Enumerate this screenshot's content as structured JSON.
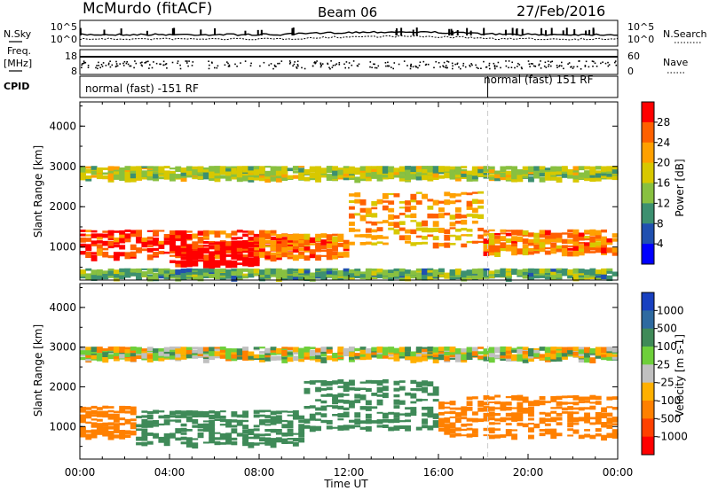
{
  "header": {
    "station": "McMurdo (fitACF)",
    "beam": "Beam 06",
    "date": "27/Feb/2016"
  },
  "noise_panel": {
    "left_label": "N.Sky",
    "right_label": "N.Search",
    "left_ticks": [
      "10^5",
      "10^0"
    ],
    "right_ticks": [
      "10^5",
      "10^0"
    ]
  },
  "freq_panel": {
    "left_label_1": "Freq.",
    "left_label_2": "[MHz]",
    "right_label": "Nave",
    "left_ticks": [
      "18",
      "8"
    ],
    "right_ticks": [
      "60",
      "0"
    ]
  },
  "cpid": {
    "label": "CPID",
    "segments": [
      {
        "text": "normal (fast) -151 RF",
        "start_hour": 0
      },
      {
        "text": "normal (fast) 151 RF",
        "start_hour": 18.2
      }
    ]
  },
  "power_colorbar": {
    "label": "Power [dB]",
    "ticks": [
      "28",
      "24",
      "20",
      "16",
      "12",
      "8",
      "4"
    ],
    "colors": [
      "#ff0000",
      "#ff6000",
      "#ffa000",
      "#d8c800",
      "#88c040",
      "#3c9070",
      "#2050b0",
      "#0000ff"
    ]
  },
  "velocity_colorbar": {
    "label": "Velocity [m s-1]",
    "ticks": [
      "1000",
      "500",
      "100",
      "25",
      "-25",
      "-100",
      "-500",
      "-1000"
    ],
    "colors": [
      "#1840c0",
      "#2e6aa0",
      "#3f8a58",
      "#6ecf3a",
      "#c0c0c0",
      "#ffb000",
      "#ff8000",
      "#ff4000",
      "#ff0000"
    ]
  },
  "chart_data": [
    {
      "type": "heatmap",
      "name": "Power",
      "ylabel": "Slant Range [km]",
      "xlabel": "Time UT",
      "ylim": [
        180,
        4600
      ],
      "yticks": [
        "1000",
        "2000",
        "3000",
        "4000"
      ],
      "xticks": [
        "00:00",
        "04:00",
        "08:00",
        "12:00",
        "16:00",
        "20:00",
        "00:00"
      ],
      "bands": [
        {
          "t0": 0,
          "t1": 24,
          "r0": 2650,
          "r1": 2950,
          "level": 12
        },
        {
          "t0": 0,
          "t1": 10,
          "r0": 700,
          "r1": 1400,
          "level": 24
        },
        {
          "t0": 4,
          "t1": 8,
          "r0": 500,
          "r1": 1100,
          "level": 28
        },
        {
          "t0": 8,
          "t1": 12,
          "r0": 700,
          "r1": 1300,
          "level": 20
        },
        {
          "t0": 12,
          "t1": 18,
          "r0": 1000,
          "r1": 2400,
          "level": 18
        },
        {
          "t0": 18,
          "t1": 24,
          "r0": 800,
          "r1": 1400,
          "level": 20
        },
        {
          "t0": 0,
          "t1": 24,
          "r0": 200,
          "r1": 400,
          "level": 8
        }
      ]
    },
    {
      "type": "heatmap",
      "name": "Velocity",
      "ylabel": "Slant Range [km]",
      "xlabel": "Time UT",
      "ylim": [
        180,
        4600
      ],
      "yticks": [
        "1000",
        "2000",
        "3000",
        "4000"
      ],
      "xticks": [
        "00:00",
        "04:00",
        "08:00",
        "12:00",
        "16:00",
        "20:00",
        "00:00"
      ],
      "bands": [
        {
          "t0": 0,
          "t1": 2.5,
          "r0": 700,
          "r1": 1500,
          "value": -300
        },
        {
          "t0": 2.5,
          "t1": 10,
          "r0": 500,
          "r1": 1400,
          "value": 300
        },
        {
          "t0": 10,
          "t1": 16,
          "r0": 900,
          "r1": 2200,
          "value": 250
        },
        {
          "t0": 16,
          "t1": 24,
          "r0": 700,
          "r1": 1800,
          "value": -300
        },
        {
          "t0": 0,
          "t1": 24,
          "r0": 2650,
          "r1": 2950,
          "value": 0
        }
      ]
    }
  ]
}
